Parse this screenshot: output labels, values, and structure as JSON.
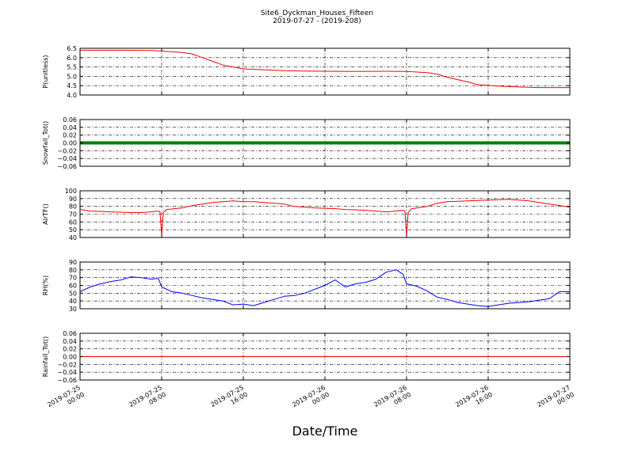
{
  "figure": {
    "title_line1": "Site6_Dyckman_Houses_Fifteen",
    "title_line2": "2019-07-27 - (2019-208)",
    "xlabel": "Date/Time"
  },
  "x_axis": {
    "range": [
      "2019-07-25 00:00",
      "2019-07-27 00:00"
    ],
    "ticks": [
      {
        "value": "2019-07-25 00:00",
        "line1": "2019-07-25",
        "line2": "00:00"
      },
      {
        "value": "2019-07-25 08:00",
        "line1": "2019-07-25",
        "line2": "08:00"
      },
      {
        "value": "2019-07-25 16:00",
        "line1": "2019-07-25",
        "line2": "16:00"
      },
      {
        "value": "2019-07-26 00:00",
        "line1": "2019-07-26",
        "line2": "00:00"
      },
      {
        "value": "2019-07-26 08:00",
        "line1": "2019-07-26",
        "line2": "08:00"
      },
      {
        "value": "2019-07-26 16:00",
        "line1": "2019-07-26",
        "line2": "16:00"
      },
      {
        "value": "2019-07-27 00:00",
        "line1": "2019-07-27",
        "line2": "00:00"
      }
    ]
  },
  "chart_data": [
    {
      "type": "line",
      "ylabel": "P(unitless)",
      "ylim": [
        4.0,
        6.5
      ],
      "yticks": [
        4.0,
        4.5,
        5.0,
        5.5,
        6.0,
        6.5
      ],
      "yticklabels": [
        "4.0",
        "4.5",
        "5.0",
        "5.5",
        "6.0",
        "6.5"
      ],
      "grid": true,
      "series": [
        {
          "color": "#ff0000",
          "points": [
            [
              "2019-07-25 00:00",
              6.4
            ],
            [
              "2019-07-25 04:00",
              6.4
            ],
            [
              "2019-07-25 07:00",
              6.38
            ],
            [
              "2019-07-25 08:00",
              6.35
            ],
            [
              "2019-07-25 10:00",
              6.28
            ],
            [
              "2019-07-25 11:00",
              6.2
            ],
            [
              "2019-07-25 12:00",
              6.0
            ],
            [
              "2019-07-25 13:00",
              5.8
            ],
            [
              "2019-07-25 14:00",
              5.6
            ],
            [
              "2019-07-25 15:00",
              5.5
            ],
            [
              "2019-07-25 16:00",
              5.4
            ],
            [
              "2019-07-25 18:00",
              5.35
            ],
            [
              "2019-07-25 20:00",
              5.3
            ],
            [
              "2019-07-25 22:00",
              5.28
            ],
            [
              "2019-07-26 00:00",
              5.27
            ],
            [
              "2019-07-26 03:00",
              5.26
            ],
            [
              "2019-07-26 06:00",
              5.27
            ],
            [
              "2019-07-26 08:00",
              5.26
            ],
            [
              "2019-07-26 10:00",
              5.2
            ],
            [
              "2019-07-26 11:00",
              5.12
            ],
            [
              "2019-07-26 12:00",
              4.95
            ],
            [
              "2019-07-26 14:00",
              4.7
            ],
            [
              "2019-07-26 15:00",
              4.55
            ],
            [
              "2019-07-26 17:00",
              4.48
            ],
            [
              "2019-07-26 19:00",
              4.43
            ],
            [
              "2019-07-26 21:00",
              4.4
            ],
            [
              "2019-07-27 00:00",
              4.4
            ]
          ]
        }
      ]
    },
    {
      "type": "line",
      "ylabel": "Snowfall_Tot()",
      "ylim": [
        -0.06,
        0.06
      ],
      "yticks": [
        -0.06,
        -0.04,
        -0.02,
        0.0,
        0.02,
        0.04,
        0.06
      ],
      "yticklabels": [
        "−0.06",
        "−0.04",
        "−0.02",
        "0.00",
        "0.02",
        "0.04",
        "0.06"
      ],
      "grid": true,
      "series": [
        {
          "color": "#008000",
          "width": 4,
          "points": [
            [
              "2019-07-25 00:00",
              0.0
            ],
            [
              "2019-07-27 00:00",
              0.0
            ]
          ]
        }
      ]
    },
    {
      "type": "line",
      "ylabel": "AirTF()",
      "ylim": [
        40,
        100
      ],
      "yticks": [
        40,
        50,
        60,
        70,
        80,
        90,
        100
      ],
      "yticklabels": [
        "40",
        "50",
        "60",
        "70",
        "80",
        "90",
        "100"
      ],
      "grid": true,
      "series": [
        {
          "color": "#ff0000",
          "points": [
            [
              "2019-07-25 00:00",
              76
            ],
            [
              "2019-07-25 01:00",
              74
            ],
            [
              "2019-07-25 03:00",
              73
            ],
            [
              "2019-07-25 05:00",
              72
            ],
            [
              "2019-07-25 06:00",
              72
            ],
            [
              "2019-07-25 07:00",
              73
            ],
            [
              "2019-07-25 07:40",
              74
            ],
            [
              "2019-07-25 07:50",
              73
            ],
            [
              "2019-07-25 08:00",
              42
            ],
            [
              "2019-07-25 08:10",
              72
            ],
            [
              "2019-07-25 08:30",
              76
            ],
            [
              "2019-07-25 10:00",
              78
            ],
            [
              "2019-07-25 11:00",
              81
            ],
            [
              "2019-07-25 12:00",
              83
            ],
            [
              "2019-07-25 13:00",
              85
            ],
            [
              "2019-07-25 14:00",
              86
            ],
            [
              "2019-07-25 15:00",
              87
            ],
            [
              "2019-07-25 16:00",
              86
            ],
            [
              "2019-07-25 17:00",
              86
            ],
            [
              "2019-07-25 18:00",
              85
            ],
            [
              "2019-07-25 19:00",
              84
            ],
            [
              "2019-07-25 20:00",
              83
            ],
            [
              "2019-07-25 21:00",
              80
            ],
            [
              "2019-07-25 23:00",
              78
            ],
            [
              "2019-07-26 01:00",
              77
            ],
            [
              "2019-07-26 02:00",
              76
            ],
            [
              "2019-07-26 04:00",
              75
            ],
            [
              "2019-07-26 06:00",
              73
            ],
            [
              "2019-07-26 07:00",
              74
            ],
            [
              "2019-07-26 07:40",
              75
            ],
            [
              "2019-07-26 07:50",
              74
            ],
            [
              "2019-07-26 08:00",
              42
            ],
            [
              "2019-07-26 08:10",
              72
            ],
            [
              "2019-07-26 08:30",
              77
            ],
            [
              "2019-07-26 10:00",
              80
            ],
            [
              "2019-07-26 11:00",
              84
            ],
            [
              "2019-07-26 12:00",
              86
            ],
            [
              "2019-07-26 14:00",
              87
            ],
            [
              "2019-07-26 16:00",
              88
            ],
            [
              "2019-07-26 18:00",
              89
            ],
            [
              "2019-07-26 20:00",
              87
            ],
            [
              "2019-07-26 22:00",
              83
            ],
            [
              "2019-07-27 00:00",
              79
            ]
          ]
        }
      ]
    },
    {
      "type": "line",
      "ylabel": "RH(%)",
      "ylim": [
        30,
        90
      ],
      "yticks": [
        30,
        40,
        50,
        60,
        70,
        80,
        90
      ],
      "yticklabels": [
        "30",
        "40",
        "50",
        "60",
        "70",
        "80",
        "90"
      ],
      "grid": true,
      "series": [
        {
          "color": "#0000ff",
          "points": [
            [
              "2019-07-25 00:00",
              52
            ],
            [
              "2019-07-25 01:00",
              58
            ],
            [
              "2019-07-25 02:00",
              62
            ],
            [
              "2019-07-25 03:00",
              65
            ],
            [
              "2019-07-25 04:00",
              67
            ],
            [
              "2019-07-25 05:00",
              71
            ],
            [
              "2019-07-25 06:00",
              70
            ],
            [
              "2019-07-25 07:00",
              68
            ],
            [
              "2019-07-25 07:40",
              69
            ],
            [
              "2019-07-25 08:00",
              58
            ],
            [
              "2019-07-25 09:00",
              52
            ],
            [
              "2019-07-25 10:00",
              50
            ],
            [
              "2019-07-25 11:00",
              47
            ],
            [
              "2019-07-25 12:00",
              44
            ],
            [
              "2019-07-25 13:00",
              42
            ],
            [
              "2019-07-25 14:00",
              40
            ],
            [
              "2019-07-25 15:00",
              35
            ],
            [
              "2019-07-25 16:00",
              36
            ],
            [
              "2019-07-25 17:00",
              34
            ],
            [
              "2019-07-25 18:00",
              38
            ],
            [
              "2019-07-25 19:00",
              42
            ],
            [
              "2019-07-25 20:00",
              46
            ],
            [
              "2019-07-25 21:00",
              47
            ],
            [
              "2019-07-25 22:00",
              50
            ],
            [
              "2019-07-26 00:00",
              60
            ],
            [
              "2019-07-26 01:00",
              67
            ],
            [
              "2019-07-26 02:00",
              58
            ],
            [
              "2019-07-26 03:00",
              62
            ],
            [
              "2019-07-26 04:00",
              64
            ],
            [
              "2019-07-26 05:00",
              68
            ],
            [
              "2019-07-26 06:00",
              77
            ],
            [
              "2019-07-26 07:00",
              80
            ],
            [
              "2019-07-26 07:40",
              74
            ],
            [
              "2019-07-26 08:00",
              62
            ],
            [
              "2019-07-26 09:00",
              59
            ],
            [
              "2019-07-26 10:00",
              53
            ],
            [
              "2019-07-26 11:00",
              45
            ],
            [
              "2019-07-26 12:00",
              42
            ],
            [
              "2019-07-26 13:00",
              38
            ],
            [
              "2019-07-26 14:00",
              36
            ],
            [
              "2019-07-26 15:00",
              34
            ],
            [
              "2019-07-26 16:00",
              33
            ],
            [
              "2019-07-26 17:00",
              35
            ],
            [
              "2019-07-26 18:00",
              37
            ],
            [
              "2019-07-26 20:00",
              39
            ],
            [
              "2019-07-26 22:00",
              43
            ],
            [
              "2019-07-26 23:00",
              52
            ],
            [
              "2019-07-27 00:00",
              52
            ]
          ]
        }
      ]
    },
    {
      "type": "line",
      "ylabel": "Rainfall_Tot()",
      "ylim": [
        -0.06,
        0.06
      ],
      "yticks": [
        -0.06,
        -0.04,
        -0.02,
        0.0,
        0.02,
        0.04,
        0.06
      ],
      "yticklabels": [
        "−0.06",
        "−0.04",
        "−0.02",
        "0.00",
        "0.02",
        "0.04",
        "0.06"
      ],
      "grid": true,
      "series": [
        {
          "color": "#ff0000",
          "points": [
            [
              "2019-07-25 00:00",
              0.0
            ],
            [
              "2019-07-27 00:00",
              0.0
            ]
          ]
        }
      ]
    }
  ]
}
